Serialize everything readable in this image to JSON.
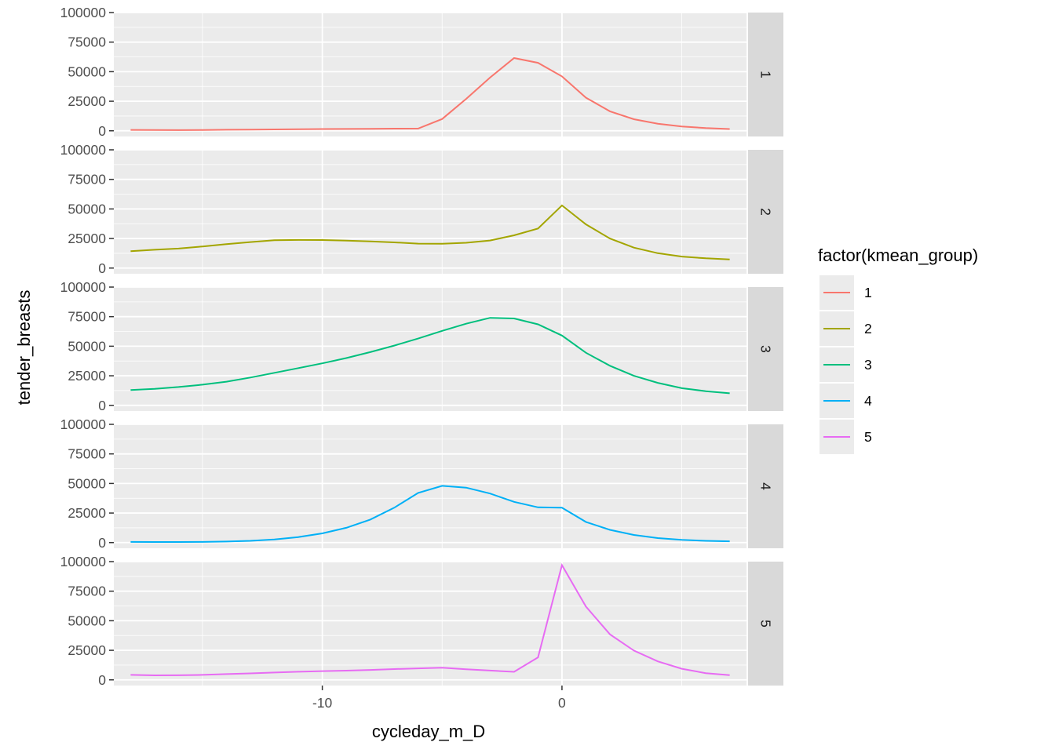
{
  "chart_data": {
    "type": "line",
    "xlabel": "cycleday_m_D",
    "ylabel": "tender_breasts",
    "xlim": [
      -18.7,
      7.7
    ],
    "ylim": [
      -4800,
      100000
    ],
    "x_ticks": [
      -10,
      0
    ],
    "y_ticks": [
      0,
      25000,
      50000,
      75000,
      100000
    ],
    "y_tick_labels": [
      "0",
      "25000",
      "50000",
      "75000",
      "100000"
    ],
    "x_tick_labels": [
      "-10",
      "0"
    ],
    "x_minor_ticks": [
      -15,
      -5,
      5
    ],
    "facet_by": "kmean_group",
    "grid": true,
    "legend": {
      "title": "factor(kmean_group)",
      "position": "right",
      "entries": [
        "1",
        "2",
        "3",
        "4",
        "5"
      ]
    },
    "series": [
      {
        "name": "1",
        "color": "#F8766D",
        "x": [
          -18,
          -17,
          -16,
          -15,
          -14,
          -13,
          -12,
          -11,
          -10,
          -9,
          -8,
          -7,
          -6,
          -5,
          -4,
          -3,
          -2,
          -1,
          0,
          1,
          2,
          3,
          4,
          5,
          6,
          7
        ],
        "y": [
          800,
          700,
          600,
          700,
          900,
          1000,
          1200,
          1300,
          1500,
          1600,
          1700,
          1800,
          1900,
          10000,
          27000,
          45000,
          61500,
          57500,
          46000,
          28000,
          16500,
          9800,
          6000,
          3700,
          2300,
          1500
        ]
      },
      {
        "name": "2",
        "color": "#A3A500",
        "x": [
          -18,
          -17,
          -16,
          -15,
          -14,
          -13,
          -12,
          -11,
          -10,
          -9,
          -8,
          -7,
          -6,
          -5,
          -4,
          -3,
          -2,
          -1,
          0,
          1,
          2,
          3,
          4,
          5,
          6,
          7
        ],
        "y": [
          14300,
          15500,
          16500,
          18300,
          20300,
          22000,
          23500,
          23800,
          23700,
          23200,
          22500,
          21700,
          20700,
          20600,
          21400,
          23300,
          27700,
          33500,
          53000,
          37000,
          25000,
          17300,
          12600,
          9700,
          8300,
          7300
        ]
      },
      {
        "name": "3",
        "color": "#00BF7D",
        "x": [
          -18,
          -17,
          -16,
          -15,
          -14,
          -13,
          -12,
          -11,
          -10,
          -9,
          -8,
          -7,
          -6,
          -5,
          -4,
          -3,
          -2,
          -1,
          0,
          1,
          2,
          3,
          4,
          5,
          6,
          7
        ],
        "y": [
          13000,
          14000,
          15500,
          17500,
          20000,
          23500,
          27500,
          31500,
          35500,
          40000,
          45000,
          50500,
          56500,
          63000,
          69000,
          74000,
          73500,
          68500,
          59000,
          44500,
          33500,
          25000,
          19000,
          14500,
          12000,
          10200
        ]
      },
      {
        "name": "4",
        "color": "#00B0F6",
        "x": [
          -18,
          -17,
          -16,
          -15,
          -14,
          -13,
          -12,
          -11,
          -10,
          -9,
          -8,
          -7,
          -6,
          -5,
          -4,
          -3,
          -2,
          -1,
          0,
          1,
          2,
          3,
          4,
          5,
          6,
          7
        ],
        "y": [
          600,
          500,
          500,
          600,
          900,
          1500,
          2700,
          4700,
          7800,
          12500,
          19500,
          29500,
          42000,
          48000,
          46500,
          41500,
          34500,
          29800,
          29500,
          17500,
          10800,
          6500,
          3800,
          2300,
          1500,
          1100
        ]
      },
      {
        "name": "5",
        "color": "#E76BF3",
        "x": [
          -18,
          -17,
          -16,
          -15,
          -14,
          -13,
          -12,
          -11,
          -10,
          -9,
          -8,
          -7,
          -6,
          -5,
          -4,
          -3,
          -2,
          -1,
          0,
          1,
          2,
          3,
          4,
          5,
          6,
          7
        ],
        "y": [
          4200,
          3800,
          3900,
          4200,
          4900,
          5500,
          6200,
          6900,
          7400,
          7800,
          8400,
          9100,
          9700,
          10300,
          8900,
          7900,
          6800,
          19000,
          97000,
          62000,
          38500,
          24800,
          15600,
          9400,
          5700,
          4000
        ]
      }
    ]
  }
}
